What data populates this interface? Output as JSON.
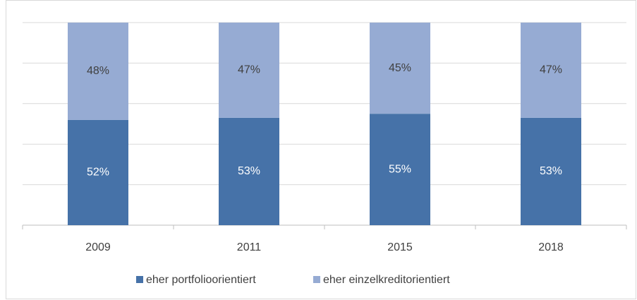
{
  "chart_data": {
    "type": "stacked_bar",
    "categories": [
      "2009",
      "2011",
      "2015",
      "2018"
    ],
    "series": [
      {
        "name": "eher portfolioorientiert",
        "color": "#4672a8",
        "values": [
          52,
          53,
          55,
          53
        ],
        "value_labels": [
          "52%",
          "53%",
          "55%",
          "53%"
        ]
      },
      {
        "name": "eher einzelkreditorientiert",
        "color": "#96abd3",
        "values": [
          48,
          47,
          45,
          47
        ],
        "value_labels": [
          "48%",
          "47%",
          "45%",
          "47%"
        ]
      }
    ],
    "ylim": [
      0,
      100
    ],
    "yticks": [
      0,
      20,
      40,
      60,
      80,
      100
    ],
    "grid": true,
    "legend": "bottom"
  }
}
